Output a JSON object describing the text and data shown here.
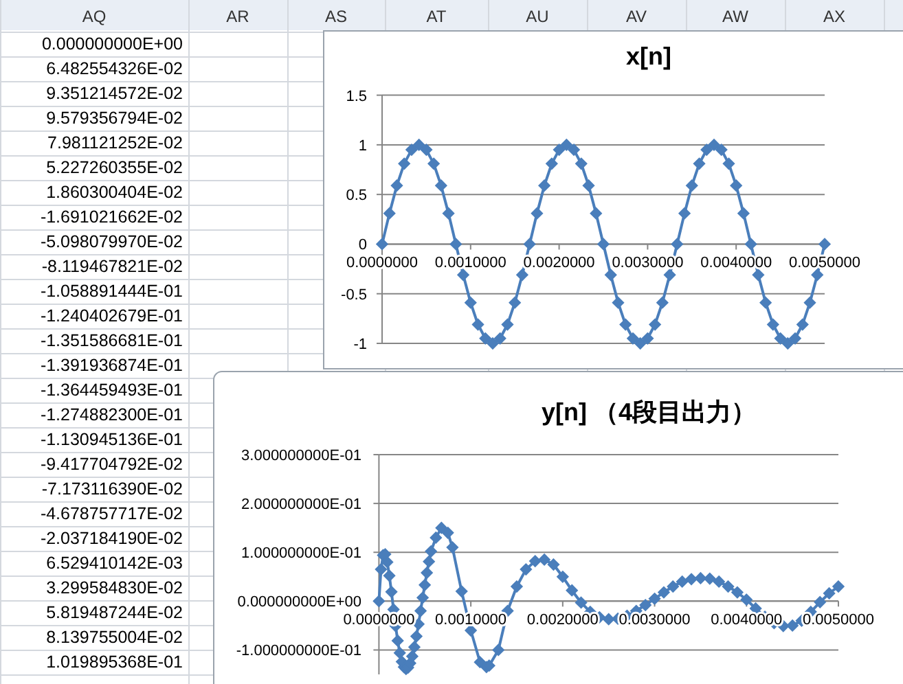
{
  "chart_data": [
    {
      "type": "other",
      "categories": [
        "AQ",
        "AR",
        "AS",
        "AT",
        "AU",
        "AV",
        "AW",
        "AX"
      ],
      "annotations": [
        "0.000000000E+00",
        "6.482554326E-02",
        "9.351214572E-02",
        "9.579356794E-02",
        "7.981121252E-02",
        "5.227260355E-02",
        "1.860300404E-02",
        "-1.691021662E-02",
        "-5.098079970E-02",
        "-8.119467821E-02",
        "-1.058891444E-01",
        "-1.240402679E-01",
        "-1.351586681E-01",
        "-1.391936874E-01",
        "-1.364459493E-01",
        "-1.274882300E-01",
        "-1.130945136E-01",
        "-9.417704792E-02",
        "-7.173116390E-02",
        "-4.678757717E-02",
        "-2.037184190E-02",
        "6.529410142E-03",
        "3.299584830E-02",
        "5.819487244E-02",
        "8.139755004E-02",
        "1.019895368E-01"
      ]
    },
    {
      "type": "line",
      "title": "x[n]",
      "marker": "diamond",
      "line_style": "solid",
      "grid": "y",
      "xlim": [
        0,
        0.005
      ],
      "ylim": [
        -1,
        1.5
      ],
      "xticks": [
        {
          "value": 0,
          "label": "0.0000000"
        },
        {
          "value": 0.001,
          "label": "0.0010000"
        },
        {
          "value": 0.002,
          "label": "0.0020000"
        },
        {
          "value": 0.003,
          "label": "0.0030000"
        },
        {
          "value": 0.004,
          "label": "0.0040000"
        },
        {
          "value": 0.005,
          "label": "0.0050000"
        }
      ],
      "yticks": [
        -1,
        -0.5,
        0,
        0.5,
        1,
        1.5
      ],
      "series": [
        {
          "color": "#4a7ebb",
          "x": [
            0,
            8.33e-05,
            0.0001667,
            0.00025,
            0.0003333,
            0.0004167,
            0.0005,
            0.0005833,
            0.0006667,
            0.00075,
            0.0008333,
            0.0009167,
            0.001,
            0.0010833,
            0.0011667,
            0.00125,
            0.0013333,
            0.0014167,
            0.0015,
            0.0015833,
            0.0016667,
            0.00175,
            0.0018333,
            0.0019167,
            0.002,
            0.0020833,
            0.0021667,
            0.00225,
            0.0023333,
            0.0024167,
            0.0025,
            0.0025833,
            0.0026667,
            0.00275,
            0.0028333,
            0.0029167,
            0.003,
            0.0030833,
            0.0031667,
            0.00325,
            0.0033333,
            0.0034167,
            0.0035,
            0.0035833,
            0.0036667,
            0.00375,
            0.0038333,
            0.0039167,
            0.004,
            0.0040833,
            0.0041667,
            0.00425,
            0.0043333,
            0.0044167,
            0.0045,
            0.0045833,
            0.0046667,
            0.00475,
            0.0048333,
            0.0049167,
            0.005
          ],
          "values": [
            0,
            0.31,
            0.59,
            0.81,
            0.95,
            1,
            0.95,
            0.81,
            0.59,
            0.31,
            0,
            -0.31,
            -0.59,
            -0.81,
            -0.95,
            -1,
            -0.95,
            -0.81,
            -0.59,
            -0.31,
            0,
            0.31,
            0.59,
            0.81,
            0.95,
            1,
            0.95,
            0.81,
            0.59,
            0.31,
            0,
            -0.31,
            -0.59,
            -0.81,
            -0.95,
            -1,
            -0.95,
            -0.81,
            -0.59,
            -0.31,
            0,
            0.31,
            0.59,
            0.81,
            0.95,
            1,
            0.95,
            0.81,
            0.59,
            0.31,
            0,
            -0.31,
            -0.59,
            -0.81,
            -0.95,
            -1,
            -0.95,
            -0.81,
            -0.59,
            -0.31,
            0
          ]
        }
      ]
    },
    {
      "type": "line",
      "title": "y[n] （4段目出力）",
      "marker": "diamond",
      "line_style": "solid",
      "grid": "y",
      "xlim": [
        0,
        0.005
      ],
      "ylim": [
        -0.15,
        0.3
      ],
      "xticks": [
        {
          "value": 0,
          "label": "0.0000000"
        },
        {
          "value": 0.001,
          "label": "0.0010000"
        },
        {
          "value": 0.002,
          "label": "0.0020000"
        },
        {
          "value": 0.003,
          "label": "0.0030000"
        },
        {
          "value": 0.004,
          "label": "0.0040000"
        },
        {
          "value": 0.005,
          "label": "0.0050000"
        }
      ],
      "yticks": [
        {
          "value": -0.1,
          "label": "-1.000000000E-01"
        },
        {
          "value": 0,
          "label": "0.000000000E+00"
        },
        {
          "value": 0.1,
          "label": "1.000000000E-01"
        },
        {
          "value": 0.2,
          "label": "2.000000000E-01"
        },
        {
          "value": 0.3,
          "label": "3.000000000E-01"
        }
      ],
      "series": [
        {
          "color": "#4a7ebb",
          "x": [
            0,
            2.27e-05,
            4.54e-05,
            6.8e-05,
            9.07e-05,
            0.0001134,
            0.0001361,
            0.0001587,
            0.0001814,
            0.0002041,
            0.0002268,
            0.0002494,
            0.0002721,
            0.0002948,
            0.0003175,
            0.0003401,
            0.0003628,
            0.0003855,
            0.0004082,
            0.0004308,
            0.0004535,
            0.0004762,
            0.0004989,
            0.0005215,
            0.0005442,
            0.0005669,
            0.00062,
            0.00068,
            0.00075,
            0.0008,
            0.0009,
            0.001,
            0.0011,
            0.00117,
            0.0012,
            0.0013,
            0.0014,
            0.0015,
            0.0016,
            0.0017,
            0.0018,
            0.0019,
            0.002,
            0.0021,
            0.0022,
            0.0023,
            0.0024,
            0.0025,
            0.0026,
            0.0027,
            0.0028,
            0.0029,
            0.003,
            0.0031,
            0.0032,
            0.0033,
            0.0034,
            0.0035,
            0.0036,
            0.0037,
            0.0038,
            0.0039,
            0.004,
            0.0041,
            0.0042,
            0.0043,
            0.0044,
            0.0045,
            0.0046,
            0.0047,
            0.0048,
            0.0049,
            0.005
          ],
          "values": [
            0,
            0.065,
            0.094,
            0.096,
            0.08,
            0.052,
            0.019,
            -0.017,
            -0.051,
            -0.081,
            -0.106,
            -0.124,
            -0.135,
            -0.139,
            -0.136,
            -0.127,
            -0.113,
            -0.094,
            -0.072,
            -0.047,
            -0.02,
            0.007,
            0.033,
            0.058,
            0.081,
            0.102,
            0.13,
            0.15,
            0.14,
            0.11,
            0.02,
            -0.06,
            -0.125,
            -0.135,
            -0.132,
            -0.1,
            -0.02,
            0.03,
            0.065,
            0.082,
            0.085,
            0.075,
            0.05,
            0.022,
            -0.003,
            -0.022,
            -0.033,
            -0.037,
            -0.036,
            -0.03,
            -0.02,
            -0.008,
            0.005,
            0.018,
            0.03,
            0.04,
            0.045,
            0.047,
            0.046,
            0.04,
            0.03,
            0.018,
            0.003,
            -0.015,
            -0.032,
            -0.045,
            -0.051,
            -0.05,
            -0.04,
            -0.022,
            -0.002,
            0.016,
            0.03
          ]
        }
      ]
    }
  ]
}
